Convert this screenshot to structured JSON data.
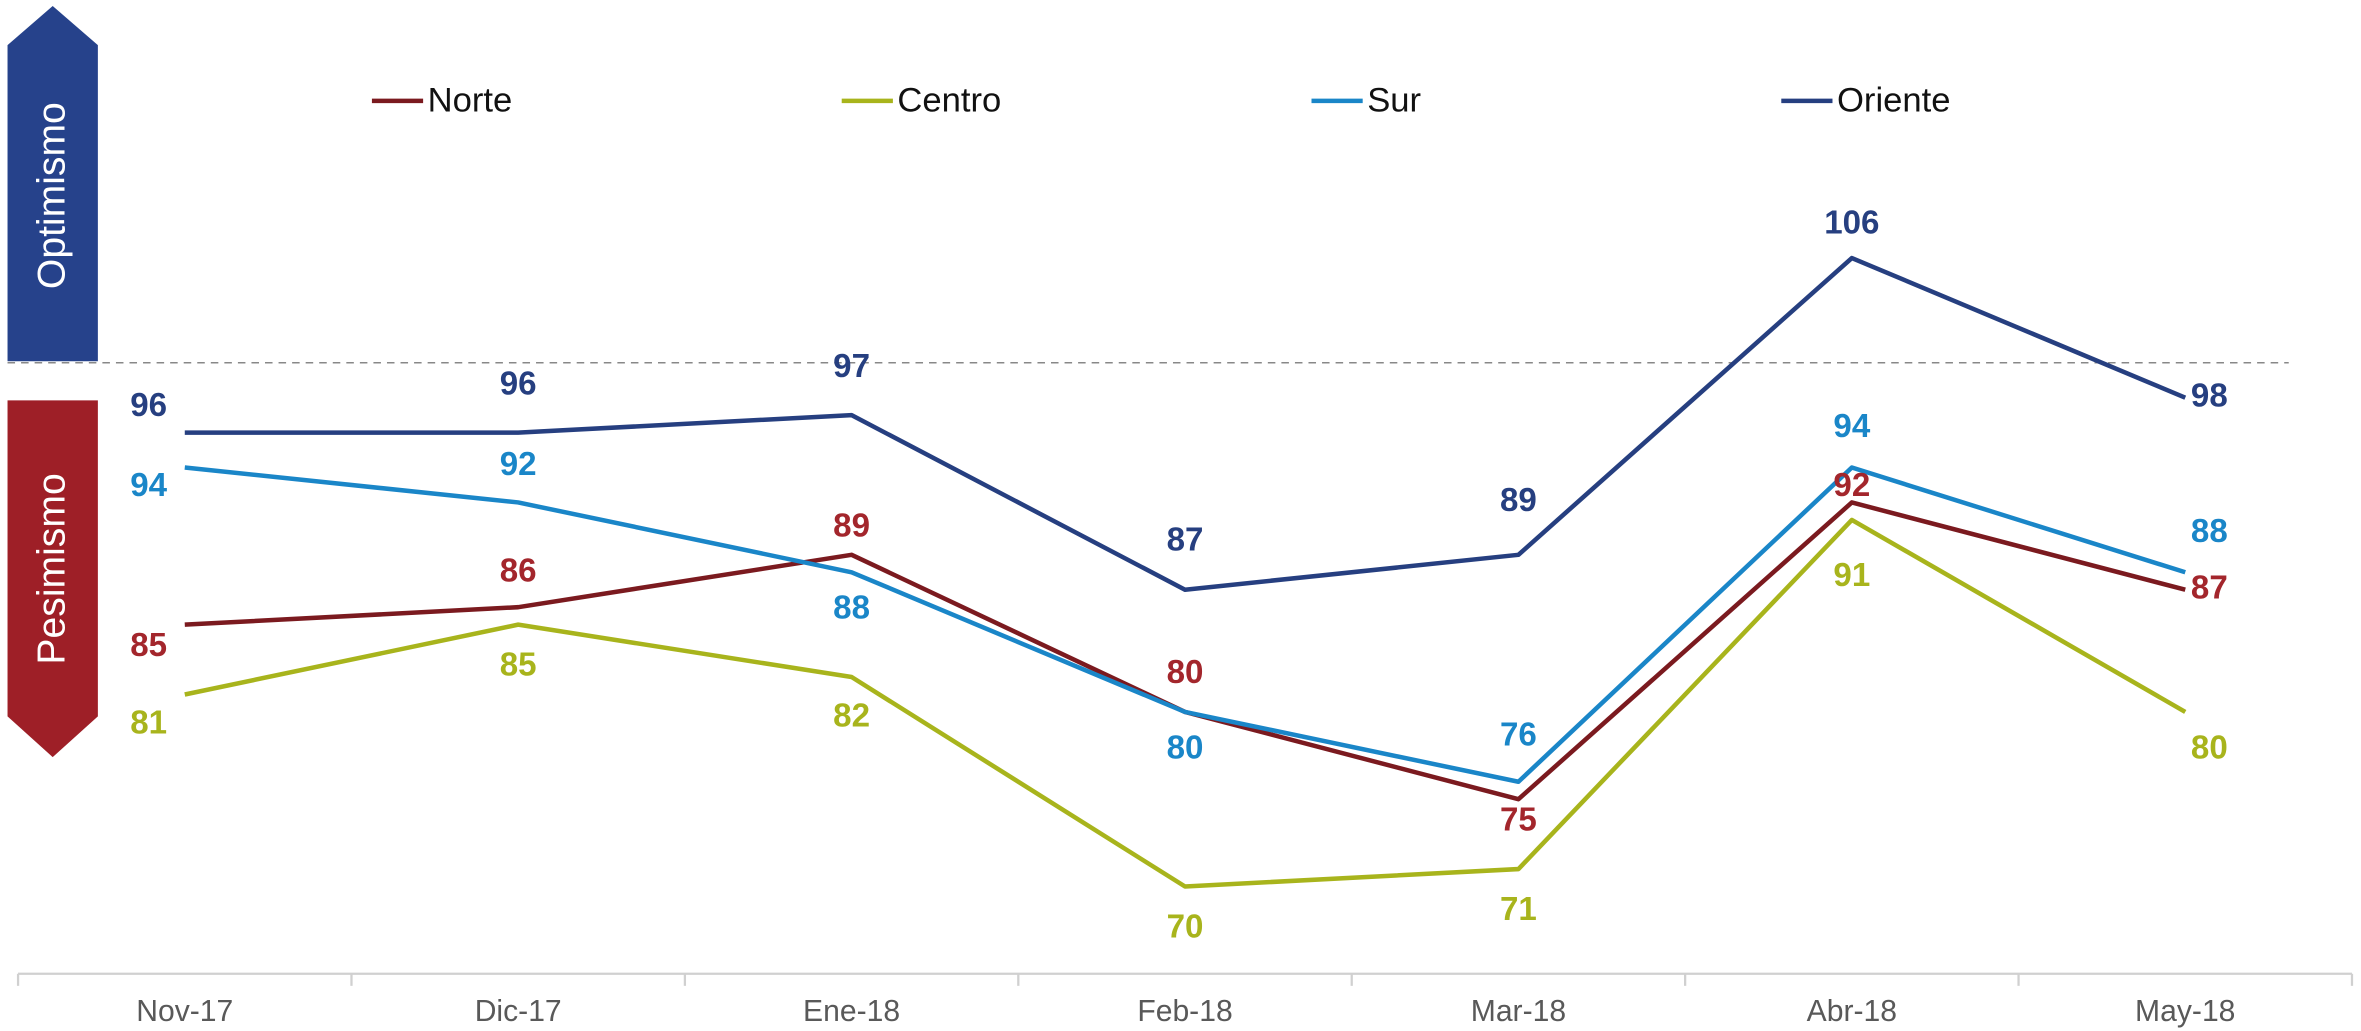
{
  "chart_data": {
    "type": "line",
    "categories": [
      "Nov-17",
      "Dic-17",
      "Ene-18",
      "Feb-18",
      "Mar-18",
      "Abr-18",
      "May-18"
    ],
    "series": [
      {
        "name": "Norte",
        "color": "#7b1a1f",
        "label_color": "#a3262c",
        "values": [
          85,
          86,
          89,
          80,
          75,
          92,
          87
        ]
      },
      {
        "name": "Centro",
        "color": "#a8b41c",
        "label_color": "#a8b41c",
        "values": [
          81,
          85,
          82,
          70,
          71,
          91,
          80
        ]
      },
      {
        "name": "Sur",
        "color": "#1a86c8",
        "label_color": "#1a86c8",
        "values": [
          94,
          92,
          88,
          80,
          76,
          94,
          88
        ]
      },
      {
        "name": "Oriente",
        "color": "#263f80",
        "label_color": "#263f80",
        "values": [
          96,
          96,
          97,
          87,
          89,
          106,
          98
        ]
      }
    ],
    "ylim": [
      65,
      120.78
    ],
    "reference_line": 100,
    "zones": [
      {
        "label": "Optimismo",
        "color": "#26428b"
      },
      {
        "label": "Pesimismo",
        "color": "#9e1f27"
      }
    ],
    "legend": "top"
  }
}
